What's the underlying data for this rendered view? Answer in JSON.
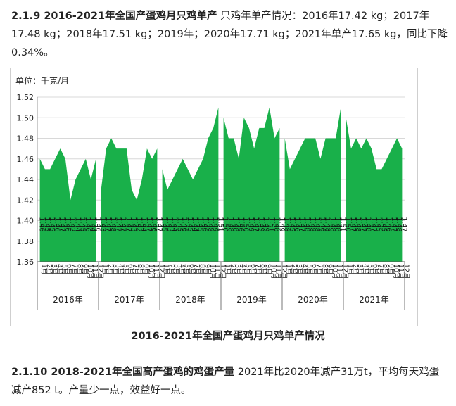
{
  "section1": {
    "heading": "2.1.9 2016-2021年全国产蛋鸡月只鸡单产",
    "body": " 只鸡年单产情况：2016年17.42 kg；2017年17.48 kg；2018年17.51 kg；2019年；2020年17.71 kg；2021年单产17.65 kg，同比下降0.34%。"
  },
  "figure_caption": "2016-2021年全国产蛋鸡月只鸡单产情况",
  "section2": {
    "heading": "2.1.10 2018-2021年全国高产蛋鸡的鸡蛋产量",
    "body": " 2021年比2020年减产31万t，平均每天鸡蛋减产852 t。产量少一点，效益好一点。"
  },
  "chart_data": {
    "type": "area",
    "unit_label": "单位：千克/月",
    "ylim": [
      1.36,
      1.52
    ],
    "yticks": [
      1.36,
      1.38,
      1.4,
      1.42,
      1.44,
      1.46,
      1.48,
      1.5,
      1.52
    ],
    "series_color": "#19b04a",
    "years": [
      "2016年",
      "2017年",
      "2018年",
      "2019年",
      "2020年",
      "2021年"
    ],
    "month_labels": [
      "1月",
      "2月",
      "3月",
      "4月",
      "5月",
      "6月",
      "7月",
      "8月",
      "9月",
      "10月",
      "11月",
      "12月"
    ],
    "values": [
      [
        1.46,
        1.45,
        1.45,
        1.46,
        1.47,
        1.46,
        1.42,
        1.44,
        1.45,
        1.46,
        1.44,
        1.46
      ],
      [
        1.43,
        1.47,
        1.48,
        1.47,
        1.47,
        1.47,
        1.43,
        1.42,
        1.44,
        1.47,
        1.46,
        1.47
      ],
      [
        1.45,
        1.43,
        1.44,
        1.45,
        1.46,
        1.45,
        1.44,
        1.45,
        1.46,
        1.48,
        1.49,
        1.51
      ],
      [
        1.5,
        1.48,
        1.48,
        1.46,
        1.5,
        1.49,
        1.47,
        1.49,
        1.49,
        1.51,
        1.48,
        1.49
      ],
      [
        1.48,
        1.45,
        1.46,
        1.47,
        1.48,
        1.48,
        1.48,
        1.46,
        1.48,
        1.48,
        1.48,
        1.51
      ],
      [
        1.5,
        1.47,
        1.48,
        1.47,
        1.48,
        1.47,
        1.45,
        1.45,
        1.46,
        1.47,
        1.48,
        1.47
      ]
    ]
  }
}
